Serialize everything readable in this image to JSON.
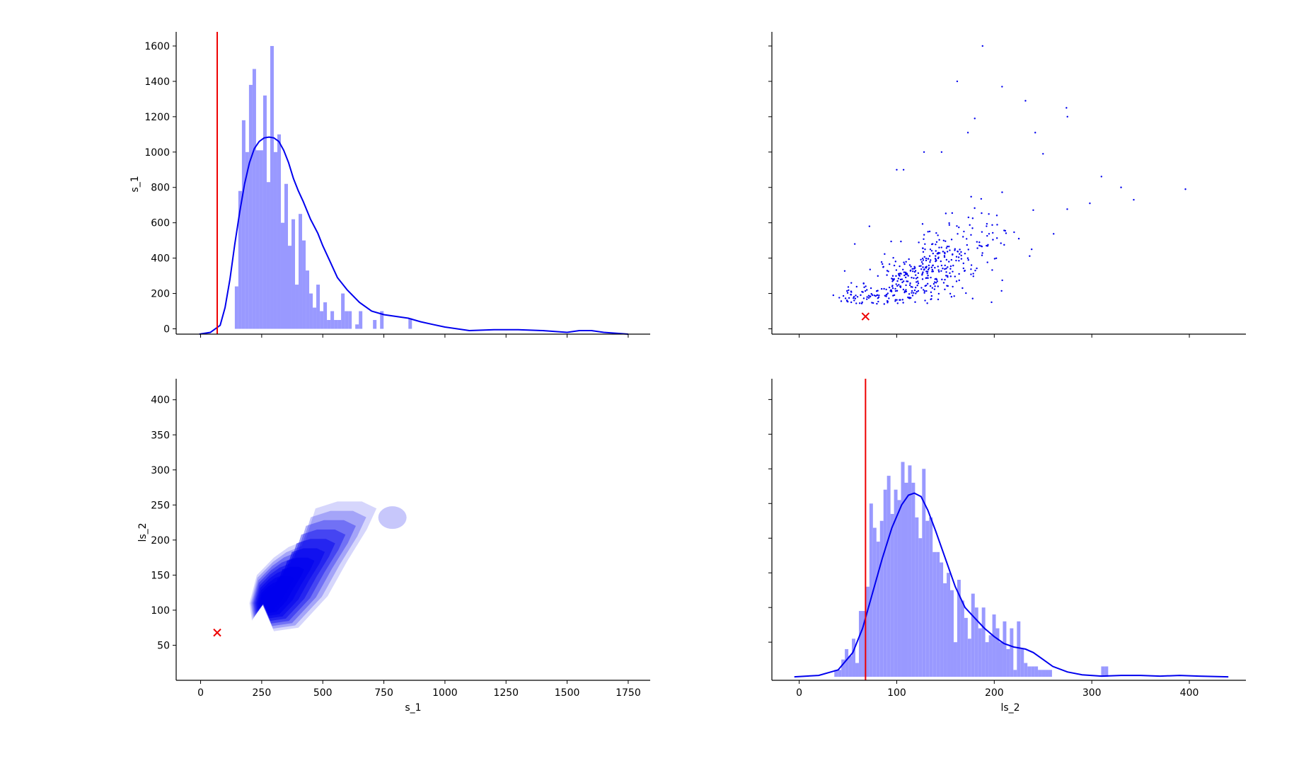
{
  "figure": {
    "background": "#ffffff",
    "hist_color": "#9999ff",
    "kde_color": "#0000ee",
    "marker_color": "#ee0000"
  },
  "chart_data": [
    {
      "panel": "top-left",
      "type": "bar",
      "subtype": "histogram_with_kde",
      "xlabel": "",
      "ylabel": "s_1",
      "xlim": [
        -100,
        1840
      ],
      "ylim": [
        -30,
        1680
      ],
      "xticks": [
        0,
        250,
        500,
        750,
        1000,
        1250,
        1500,
        1750
      ],
      "yticks": [
        0,
        200,
        400,
        600,
        800,
        1000,
        1200,
        1400,
        1600
      ],
      "ytick_labels": [
        "0",
        "200",
        "400",
        "600",
        "800",
        "1000",
        "1200",
        "1400",
        "1600"
      ],
      "reference_line_x": 68,
      "bin_start": 140,
      "bin_width": 14.5,
      "values": [
        240,
        780,
        1180,
        1000,
        1380,
        1470,
        1010,
        1010,
        1320,
        830,
        1600,
        1000,
        1100,
        600,
        820,
        470,
        620,
        250,
        650,
        500,
        330,
        200,
        120,
        250,
        100,
        150,
        50,
        100,
        50,
        50,
        200,
        100,
        100,
        0,
        25,
        100,
        0,
        0,
        0,
        50,
        0,
        100,
        0,
        0,
        0,
        0,
        0,
        0,
        0,
        60,
        0,
        0,
        0,
        0,
        0,
        0,
        0,
        0,
        0,
        0,
        0,
        0,
        0,
        0,
        0,
        0,
        0,
        0,
        0,
        0,
        0,
        0,
        0,
        0,
        0,
        0,
        0,
        0,
        0,
        0,
        0,
        0,
        0,
        0,
        0,
        0,
        0,
        0,
        0,
        0,
        0,
        0,
        0,
        0,
        0,
        0,
        0,
        0,
        0,
        0,
        0,
        0,
        0,
        0,
        0,
        0,
        0,
        0,
        0,
        0,
        0,
        0
      ],
      "kde": {
        "x": [
          -5,
          40,
          80,
          100,
          120,
          140,
          160,
          180,
          200,
          220,
          240,
          260,
          280,
          300,
          320,
          340,
          360,
          380,
          400,
          420,
          450,
          480,
          500,
          530,
          560,
          600,
          650,
          700,
          750,
          800,
          850,
          900,
          950,
          1000,
          1100,
          1200,
          1300,
          1400,
          1500,
          1550,
          1600,
          1650,
          1750
        ],
        "y": [
          -30,
          -20,
          20,
          120,
          280,
          480,
          660,
          820,
          940,
          1020,
          1060,
          1080,
          1085,
          1080,
          1060,
          1010,
          940,
          850,
          780,
          720,
          620,
          540,
          470,
          380,
          290,
          220,
          150,
          100,
          80,
          70,
          60,
          40,
          25,
          10,
          -10,
          -5,
          -5,
          -10,
          -20,
          -10,
          -10,
          -20,
          -30
        ]
      }
    },
    {
      "panel": "top-right",
      "type": "scatter",
      "xlabel": "",
      "ylabel": "",
      "xlim": [
        -28,
        458
      ],
      "ylim": [
        -30,
        1680
      ],
      "xticks": [
        0,
        100,
        200,
        300,
        400
      ],
      "yticks": [
        0,
        200,
        400,
        600,
        800,
        1000,
        1200,
        1400,
        1600
      ],
      "marker_point": {
        "x": 68,
        "y": 70
      },
      "outliers": [
        {
          "x": 188,
          "y": 1600
        },
        {
          "x": 162,
          "y": 1400
        },
        {
          "x": 208,
          "y": 1370
        },
        {
          "x": 232,
          "y": 1290
        },
        {
          "x": 274,
          "y": 1250
        },
        {
          "x": 275,
          "y": 1200
        },
        {
          "x": 180,
          "y": 1190
        },
        {
          "x": 173,
          "y": 1110
        },
        {
          "x": 242,
          "y": 1110
        },
        {
          "x": 128,
          "y": 1000
        },
        {
          "x": 146,
          "y": 1000
        },
        {
          "x": 250,
          "y": 990
        },
        {
          "x": 100,
          "y": 900
        },
        {
          "x": 107,
          "y": 900
        },
        {
          "x": 330,
          "y": 800
        },
        {
          "x": 396,
          "y": 790
        },
        {
          "x": 343,
          "y": 730
        },
        {
          "x": 298,
          "y": 710
        },
        {
          "x": 57,
          "y": 480
        },
        {
          "x": 35,
          "y": 190
        },
        {
          "x": 72,
          "y": 580
        }
      ],
      "cluster": {
        "n": 460,
        "x_center": 125,
        "x_spread": 38,
        "slope": 2.6,
        "intercept": -10,
        "y_noise": 95,
        "seed": 7
      }
    },
    {
      "panel": "bottom-left",
      "type": "heatmap",
      "subtype": "kde_2d_filled",
      "xlabel": "s_1",
      "ylabel": "ls_2",
      "xlim": [
        -100,
        1840
      ],
      "ylim": [
        0,
        430
      ],
      "xticks": [
        0,
        250,
        500,
        750,
        1000,
        1250,
        1500,
        1750
      ],
      "xtick_labels": [
        "0",
        "250",
        "500",
        "750",
        "1000",
        "1250",
        "1500",
        "1750"
      ],
      "yticks": [
        50,
        100,
        150,
        200,
        250,
        300,
        350,
        400
      ],
      "ytick_labels": [
        "50",
        "100",
        "150",
        "200",
        "250",
        "300",
        "350",
        "400"
      ],
      "marker_point": {
        "x": 68,
        "y": 68
      },
      "density_peak": {
        "x": 260,
        "y": 110
      },
      "contour_levels": 10
    },
    {
      "panel": "bottom-right",
      "type": "bar",
      "subtype": "histogram_with_kde",
      "xlabel": "ls_2",
      "ylabel": "",
      "xlim": [
        -28,
        458
      ],
      "ylim": [
        -5,
        430
      ],
      "xticks": [
        0,
        100,
        200,
        300,
        400
      ],
      "xtick_labels": [
        "0",
        "100",
        "200",
        "300",
        "400"
      ],
      "yticks": [
        50,
        100,
        150,
        200,
        250,
        300,
        350,
        400
      ],
      "reference_line_x": 68,
      "bin_start": 36,
      "bin_width": 3.6,
      "values": [
        10,
        10,
        25,
        40,
        30,
        55,
        20,
        95,
        95,
        130,
        250,
        215,
        195,
        225,
        270,
        290,
        235,
        270,
        255,
        310,
        280,
        305,
        280,
        230,
        200,
        300,
        225,
        230,
        180,
        180,
        165,
        135,
        150,
        125,
        50,
        140,
        110,
        85,
        55,
        120,
        100,
        70,
        100,
        50,
        60,
        90,
        70,
        50,
        80,
        40,
        70,
        10,
        80,
        40,
        20,
        15,
        15,
        15,
        10,
        10,
        10,
        10,
        0,
        0,
        0,
        0,
        0,
        0,
        0,
        0,
        0,
        0,
        0,
        0,
        0,
        0,
        15,
        15,
        0,
        0,
        0,
        0,
        0,
        0,
        0,
        0,
        0,
        0,
        0,
        0,
        0,
        0,
        0,
        0,
        0,
        0,
        0,
        0,
        0,
        0,
        0,
        0,
        0,
        0,
        0,
        0,
        0,
        0,
        0,
        0,
        0,
        0
      ],
      "kde": {
        "x": [
          -5,
          20,
          40,
          55,
          65,
          75,
          85,
          95,
          105,
          112,
          118,
          125,
          132,
          140,
          150,
          160,
          170,
          180,
          190,
          200,
          210,
          220,
          232,
          240,
          250,
          260,
          275,
          290,
          310,
          330,
          350,
          370,
          390,
          410,
          440
        ],
        "y": [
          0,
          2,
          10,
          35,
          70,
          120,
          170,
          215,
          248,
          262,
          265,
          260,
          240,
          210,
          170,
          130,
          100,
          85,
          70,
          58,
          48,
          43,
          40,
          35,
          25,
          15,
          7,
          3,
          1,
          2,
          2,
          1,
          2,
          1,
          0
        ]
      }
    }
  ]
}
